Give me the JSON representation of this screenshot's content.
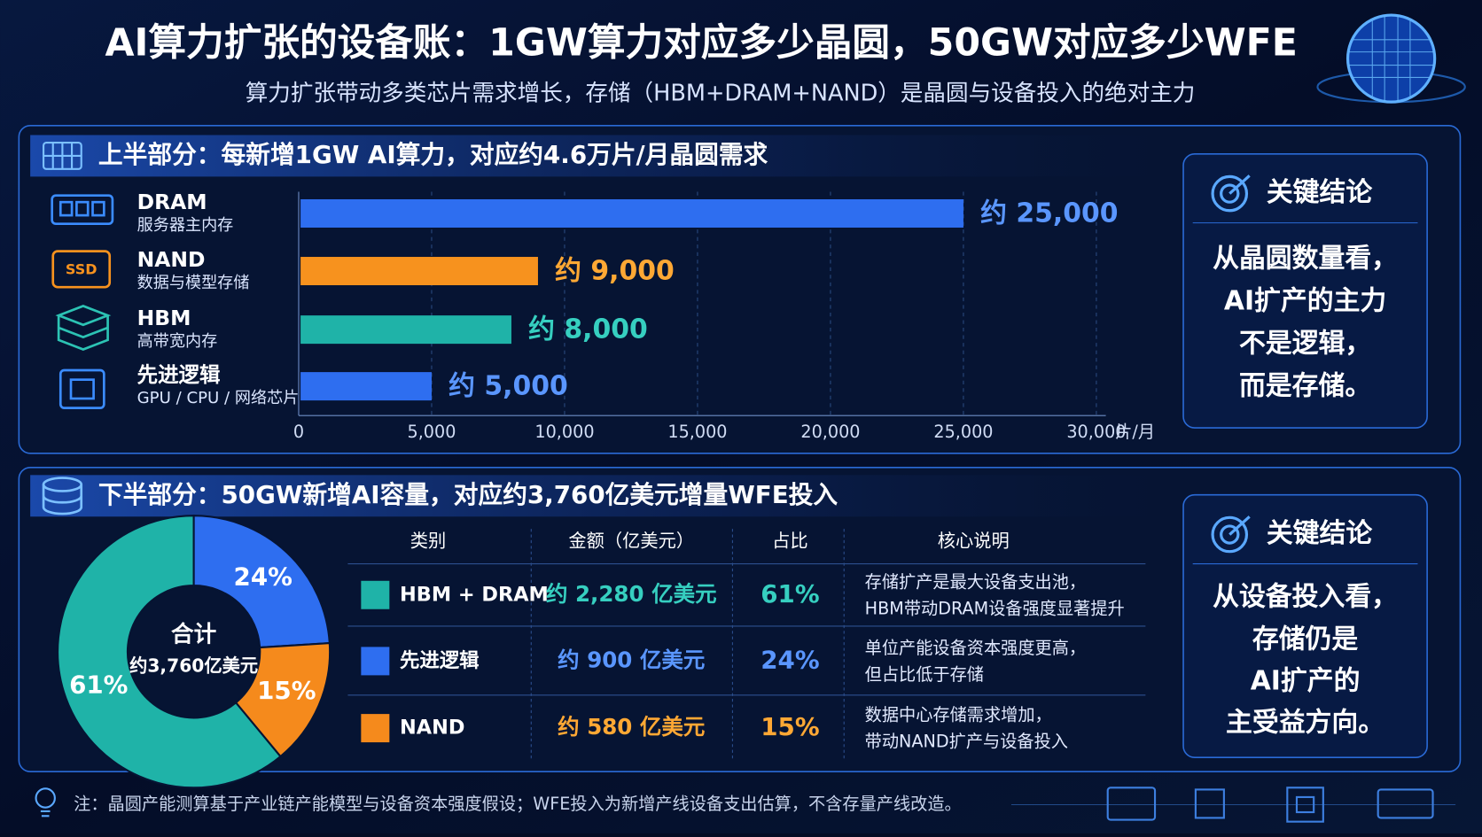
{
  "header": {
    "title": "AI算力扩张的设备账：1GW算力对应多少晶圆，50GW对应多少WFE",
    "subtitle": "算力扩张带动多类芯片需求增长，存储（HBM+DRAM+NAND）是晶圆与设备投入的绝对主力"
  },
  "sections": [
    {
      "title": "上半部分：每新增1GW AI算力，对应约4.6万片/月晶圆需求"
    },
    {
      "title": "下半部分：50GW新增AI容量，对应约3,760亿美元增量WFE投入"
    }
  ],
  "chart_data": [
    {
      "type": "bar",
      "orientation": "horizontal",
      "categories": [
        "DRAM",
        "NAND",
        "HBM",
        "先进逻辑"
      ],
      "category_notes": [
        "服务器主内存",
        "数据与模型存储",
        "高带宽内存",
        "GPU / CPU / 网络芯片"
      ],
      "values": [
        25000,
        9000,
        8000,
        5000
      ],
      "value_labels": [
        "约 25,000",
        "约 9,000",
        "约 8,000",
        "约 5,000"
      ],
      "colors": [
        "#2e6ef0",
        "#f7921e",
        "#1fb3a8",
        "#2e6ef0"
      ],
      "label_colors": [
        "#5a96ff",
        "#ffa834",
        "#36cfc0",
        "#5a96ff"
      ],
      "xlim": [
        0,
        30000
      ],
      "xticks": [
        0,
        {
          "value": 5000,
          "label": "5,000"
        },
        {
          "value": 10000,
          "label": "10,000"
        },
        {
          "value": 15000,
          "label": "15,000"
        },
        {
          "value": 20000,
          "label": "20,000"
        },
        {
          "value": 25000,
          "label": "25,000"
        },
        {
          "value": 30000,
          "label": "30,000"
        }
      ],
      "unit": "片/月",
      "grid": true
    },
    {
      "type": "pie",
      "donut": true,
      "categories": [
        "HBM + DRAM",
        "先进逻辑",
        "NAND"
      ],
      "values": [
        61,
        24,
        15
      ],
      "value_labels": [
        "61%",
        "24%",
        "15%"
      ],
      "colors": [
        "#1fb3a8",
        "#2e6ef0",
        "#f58a1c"
      ],
      "center_label": "合计",
      "center_value": "约3,760亿美元"
    }
  ],
  "table": {
    "headers": [
      "类别",
      "金额（亿美元）",
      "占比",
      "核心说明"
    ],
    "rows": [
      {
        "amount": "约 2,280 亿美元",
        "note": [
          "存储扩产是最大设备支出池，",
          "HBM带动DRAM设备强度显著提升"
        ]
      },
      {
        "amount": "约 900 亿美元",
        "note": [
          "单位产能设备资本强度更高，",
          "但占比低于存储"
        ]
      },
      {
        "amount": "约 580 亿美元",
        "note": [
          "数据中心存储需求增加，",
          "带动NAND扩产与设备投入"
        ]
      }
    ],
    "amount_colors": [
      "#36cfc0",
      "#5a96ff",
      "#ffa834"
    ]
  },
  "conclusions": [
    {
      "title": "关键结论",
      "lines": [
        "从晶圆数量看，",
        "AI扩产的主力",
        "不是逻辑，",
        "而是存储。"
      ]
    },
    {
      "title": "关键结论",
      "lines": [
        "从设备投入看，",
        "存储仍是",
        "AI扩产的",
        "主受益方向。"
      ]
    }
  ],
  "footer": {
    "note": "注：晶圆产能测算基于产业链产能模型与设备资本强度假设；WFE投入为新增产线设备支出估算，不含存量产线改造。"
  }
}
